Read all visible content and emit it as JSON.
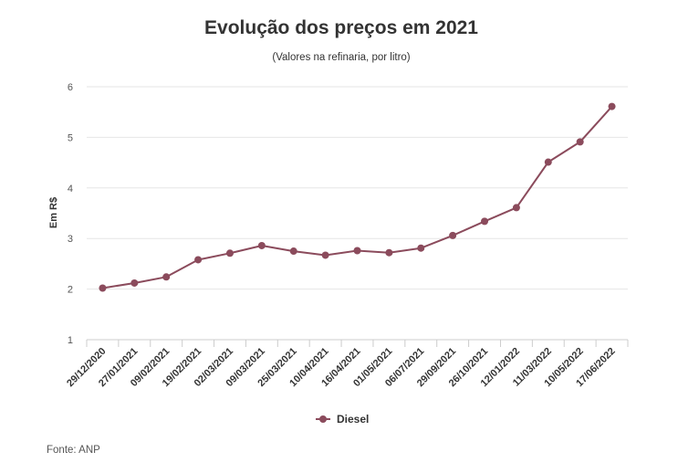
{
  "chart_data": {
    "type": "line",
    "title": "Evolução dos preços em 2021",
    "subtitle": "(Valores na refinaria, por litro)",
    "xlabel": "",
    "ylabel": "Em R$",
    "ylim": [
      1,
      6
    ],
    "yticks": [
      "1",
      "2",
      "3",
      "4",
      "5",
      "6"
    ],
    "grid": true,
    "legend_position": "bottom",
    "categories": [
      "29/12/2020",
      "27/01/2021",
      "09/02/2021",
      "19/02/2021",
      "02/03/2021",
      "09/03/2021",
      "25/03/2021",
      "10/04/2021",
      "16/04/2021",
      "01/05/2021",
      "06/07/2021",
      "29/09/2021",
      "26/10/2021",
      "12/01/2022",
      "11/03/2022",
      "10/05/2022",
      "17/06/2022"
    ],
    "series": [
      {
        "name": "Diesel",
        "color": "#8b4b5c",
        "values": [
          2.02,
          2.12,
          2.24,
          2.58,
          2.71,
          2.86,
          2.75,
          2.67,
          2.76,
          2.72,
          2.81,
          3.06,
          3.34,
          3.61,
          4.51,
          4.91,
          5.61
        ]
      }
    ],
    "source": "Fonte: ANP"
  }
}
